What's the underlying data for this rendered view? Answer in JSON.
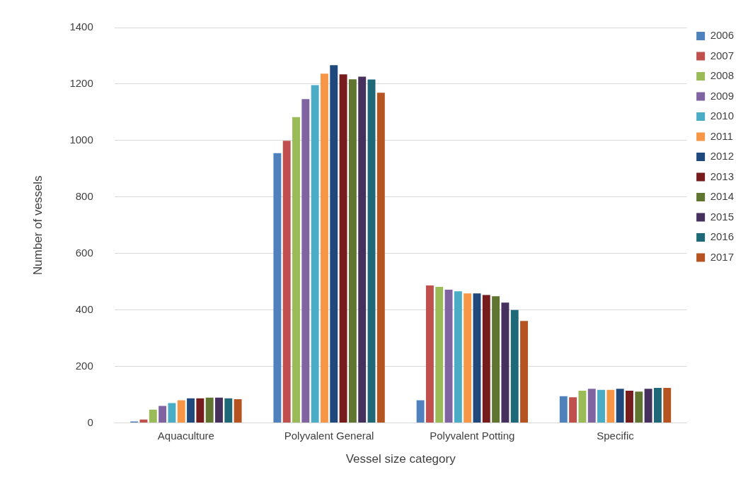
{
  "chart_data": {
    "type": "bar",
    "xlabel": "Vessel size category",
    "ylabel": "Number of vessels",
    "categories": [
      "Aquaculture",
      "Polyvalent General",
      "Polyvalent Potting",
      "Specific"
    ],
    "series": [
      {
        "name": "2006",
        "color": "#4f81bd",
        "values": [
          5,
          955,
          80,
          95
        ]
      },
      {
        "name": "2007",
        "color": "#c0504d",
        "values": [
          12,
          999,
          487,
          91
        ]
      },
      {
        "name": "2008",
        "color": "#9bbb59",
        "values": [
          47,
          1083,
          482,
          114
        ]
      },
      {
        "name": "2009",
        "color": "#8064a2",
        "values": [
          60,
          1147,
          472,
          121
        ]
      },
      {
        "name": "2010",
        "color": "#4bacc6",
        "values": [
          70,
          1196,
          466,
          117
        ]
      },
      {
        "name": "2011",
        "color": "#f79646",
        "values": [
          80,
          1237,
          459,
          117
        ]
      },
      {
        "name": "2012",
        "color": "#1f497d",
        "values": [
          87,
          1267,
          459,
          121
        ]
      },
      {
        "name": "2013",
        "color": "#771c1c",
        "values": [
          87,
          1234,
          453,
          114
        ]
      },
      {
        "name": "2014",
        "color": "#5f7530",
        "values": [
          90,
          1217,
          449,
          111
        ]
      },
      {
        "name": "2015",
        "color": "#46305e",
        "values": [
          90,
          1226,
          426,
          121
        ]
      },
      {
        "name": "2016",
        "color": "#1f6878",
        "values": [
          87,
          1216,
          400,
          124
        ]
      },
      {
        "name": "2017",
        "color": "#b65421",
        "values": [
          84,
          1169,
          361,
          124
        ]
      }
    ],
    "ylim": [
      0,
      1400
    ],
    "yticks": [
      0,
      200,
      400,
      600,
      800,
      1000,
      1200,
      1400
    ],
    "grid": "y",
    "legend": "right"
  }
}
